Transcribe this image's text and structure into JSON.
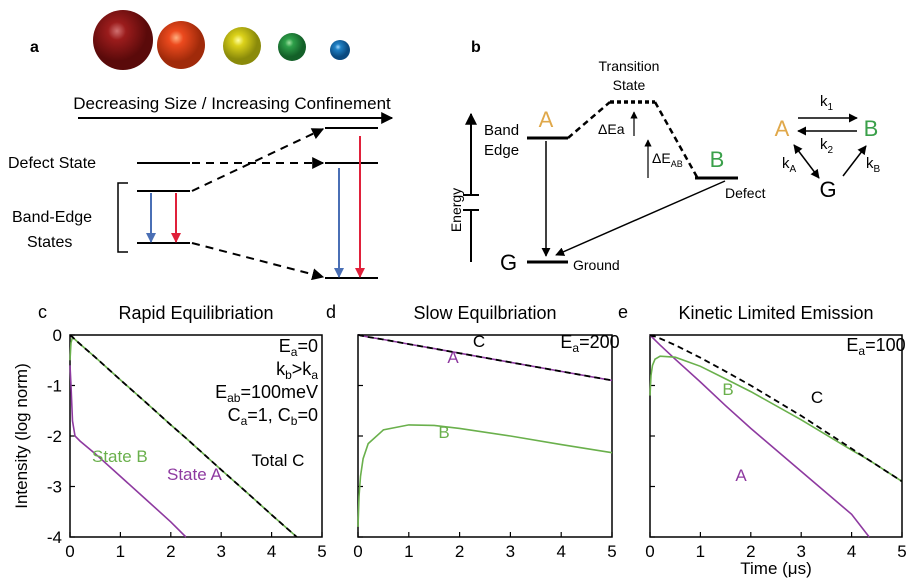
{
  "panel_a": {
    "label": "a",
    "arrow_label": "Decreasing Size / Increasing Confinement",
    "defect_label": "Defect State",
    "band_edge_label": [
      "Band-Edge",
      "States"
    ]
  },
  "panel_b": {
    "label": "b",
    "transition_state": [
      "Transition",
      "State"
    ],
    "state_a": "A",
    "state_b": "B",
    "state_g": "G",
    "band_edge": [
      "Band",
      "Edge"
    ],
    "defect": "Defect",
    "ground": "Ground",
    "energy": "Energy",
    "delta_ea": "ΔEa",
    "delta_eab": [
      "ΔE",
      "AB"
    ],
    "scheme": {
      "a": "A",
      "b": "B",
      "g": "G",
      "k1": [
        "k",
        "1"
      ],
      "k2": [
        "k",
        "2"
      ],
      "ka": [
        "k",
        "A"
      ],
      "kb": [
        "k",
        "B"
      ]
    }
  },
  "chart_data": [
    {
      "type": "line",
      "panel_label": "c",
      "title": "Rapid Equilibriation",
      "ylabel": "Intensity (log norm)",
      "x": [
        0,
        0.02,
        0.05,
        0.1,
        0.2,
        0.5,
        1,
        1.5,
        2,
        2.3,
        2.5,
        3,
        3.5,
        4,
        4.5
      ],
      "series": [
        {
          "name": "State A",
          "color": "#8e3aa0",
          "dash": false,
          "values": [
            -0.6,
            -1.0,
            -1.7,
            -2.0,
            -2.1,
            -2.35,
            -2.8,
            -3.25,
            -3.7,
            -4,
            null,
            null,
            null,
            null,
            null
          ]
        },
        {
          "name": "State B",
          "color": "#6ab04c",
          "dash": false,
          "values": [
            -0.5,
            -0.15,
            -0.05,
            -0.09,
            -0.18,
            -0.44,
            -0.89,
            -1.33,
            -1.78,
            -2.04,
            -2.22,
            -2.67,
            -3.11,
            -3.56,
            -4
          ]
        },
        {
          "name": "Total C",
          "color": "#000000",
          "dash": true,
          "values": [
            0,
            -0.02,
            -0.04,
            -0.09,
            -0.18,
            -0.44,
            -0.89,
            -1.33,
            -1.78,
            -2.04,
            -2.22,
            -2.67,
            -3.11,
            -3.56,
            -4
          ]
        }
      ],
      "annotations": [
        [
          "E",
          "a",
          "=0"
        ],
        [
          "k",
          "b",
          ">k",
          "a"
        ],
        [
          "E",
          "ab",
          "=100meV"
        ],
        [
          "C",
          "a",
          "=1, C",
          "b",
          "=0"
        ]
      ],
      "xlim": [
        0,
        5
      ],
      "xticks": [
        0,
        1,
        2,
        3,
        4,
        5
      ],
      "ylim": [
        -4,
        0
      ],
      "yticks": [
        0,
        -1,
        -2,
        -3,
        -4
      ],
      "ytick_labels": true
    },
    {
      "type": "line",
      "panel_label": "d",
      "title": "Slow Equilbriation",
      "x": [
        0,
        0.02,
        0.05,
        0.1,
        0.2,
        0.5,
        1,
        1.5,
        2,
        3,
        4,
        5
      ],
      "series": [
        {
          "name": "A",
          "color": "#8e3aa0",
          "dash": false,
          "values": [
            0,
            0,
            -0.01,
            -0.02,
            -0.04,
            -0.09,
            -0.18,
            -0.27,
            -0.36,
            -0.54,
            -0.72,
            -0.9
          ]
        },
        {
          "name": "B",
          "color": "#6ab04c",
          "dash": false,
          "values": [
            -3.8,
            -3.2,
            -2.8,
            -2.45,
            -2.15,
            -1.88,
            -1.78,
            -1.79,
            -1.85,
            -2.0,
            -2.17,
            -2.33
          ]
        },
        {
          "name": "C",
          "color": "#000000",
          "dash": true,
          "values": [
            0,
            0,
            -0.01,
            -0.02,
            -0.04,
            -0.09,
            -0.18,
            -0.27,
            -0.36,
            -0.54,
            -0.72,
            -0.9
          ]
        }
      ],
      "annotations": [
        [
          "E",
          "a",
          "=200"
        ]
      ],
      "xlim": [
        0,
        5
      ],
      "xticks": [
        0,
        1,
        2,
        3,
        4,
        5
      ],
      "ylim": [
        -4,
        0
      ],
      "yticks": [
        0,
        -1,
        -2,
        -3,
        -4
      ],
      "ytick_labels": false
    },
    {
      "type": "line",
      "panel_label": "e",
      "title": "Kinetic Limited Emission",
      "xlabel": "Time (μs)",
      "x": [
        0,
        0.02,
        0.05,
        0.1,
        0.2,
        0.5,
        1,
        1.5,
        2,
        3,
        4,
        4.35,
        5
      ],
      "series": [
        {
          "name": "A",
          "color": "#8e3aa0",
          "dash": false,
          "values": [
            0,
            -0.02,
            -0.05,
            -0.1,
            -0.2,
            -0.48,
            -0.93,
            -1.4,
            -1.85,
            -2.7,
            -3.55,
            -4,
            null
          ]
        },
        {
          "name": "B",
          "color": "#6ab04c",
          "dash": false,
          "values": [
            -1.2,
            -0.8,
            -0.6,
            -0.48,
            -0.42,
            -0.44,
            -0.62,
            -0.87,
            -1.12,
            -1.68,
            -2.28,
            -2.48,
            -2.9
          ]
        },
        {
          "name": "C",
          "color": "#000000",
          "dash": true,
          "values": [
            0,
            -0.01,
            -0.02,
            -0.03,
            -0.07,
            -0.2,
            -0.45,
            -0.72,
            -1.0,
            -1.6,
            -2.25,
            -2.48,
            -2.9
          ]
        }
      ],
      "annotations": [
        [
          "E",
          "a",
          "=100"
        ]
      ],
      "xlim": [
        0,
        5
      ],
      "xticks": [
        0,
        1,
        2,
        3,
        4,
        5
      ],
      "ylim": [
        -4,
        0
      ],
      "yticks": [
        0,
        -1,
        -2,
        -3,
        -4
      ],
      "ytick_labels": false
    }
  ]
}
